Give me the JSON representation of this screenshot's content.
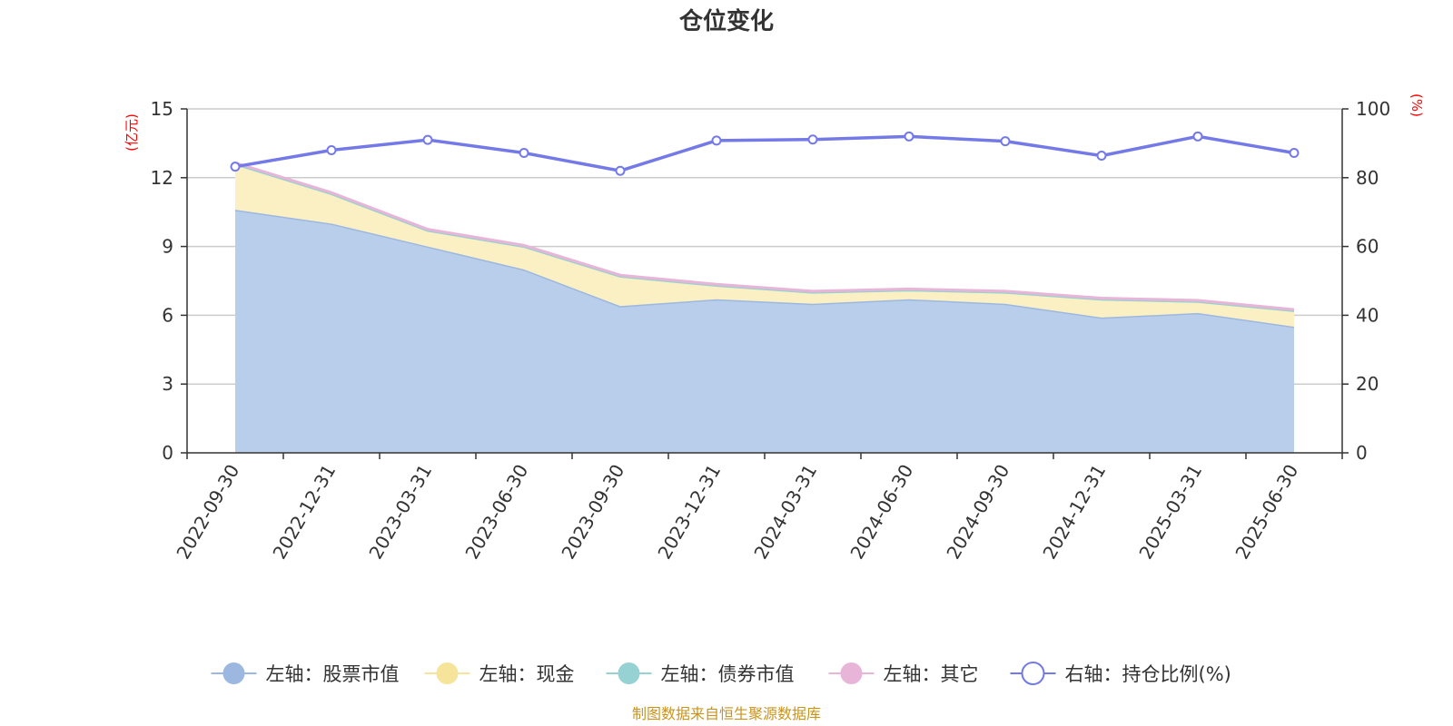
{
  "chart_data": {
    "type": "area",
    "title": "仓位变化",
    "x": [
      "2022-09-30",
      "2022-12-31",
      "2023-03-31",
      "2023-06-30",
      "2023-09-30",
      "2023-12-31",
      "2024-03-31",
      "2024-06-30",
      "2024-09-30",
      "2024-12-31",
      "2025-03-31",
      "2025-06-30"
    ],
    "left_axis": {
      "unit": "(亿元)",
      "ylim": [
        0,
        15
      ],
      "ticks": [
        "0",
        "3",
        "6",
        "9",
        "12",
        "15"
      ]
    },
    "right_axis": {
      "unit": "(%)",
      "ylim": [
        0,
        100
      ],
      "ticks": [
        "0",
        "20",
        "40",
        "60",
        "80",
        "100"
      ]
    },
    "stacked": true,
    "grid": true,
    "series": [
      {
        "name": "左轴：股票市值",
        "axis": "left",
        "color": "#9db8e0",
        "fill": "#b8ceeb",
        "values": [
          10.6,
          10.0,
          9.0,
          8.0,
          6.4,
          6.7,
          6.5,
          6.7,
          6.5,
          5.9,
          6.1,
          5.5
        ]
      },
      {
        "name": "左轴：现金",
        "axis": "left",
        "color": "#f5e49a",
        "fill": "#fbf0c4",
        "values": [
          2.0,
          1.3,
          0.7,
          1.0,
          1.3,
          0.6,
          0.5,
          0.4,
          0.5,
          0.8,
          0.5,
          0.7
        ]
      },
      {
        "name": "左轴：债券市值",
        "axis": "left",
        "color": "#96d1d4",
        "fill": "#b6e0e2",
        "values": [
          0,
          0,
          0,
          0,
          0,
          0,
          0,
          0,
          0,
          0,
          0,
          0
        ]
      },
      {
        "name": "左轴：其它",
        "axis": "left",
        "color": "#e8b4d8",
        "fill": "#f0cde6",
        "values": [
          0.05,
          0.05,
          0.05,
          0.05,
          0.05,
          0.05,
          0.05,
          0.05,
          0.05,
          0.05,
          0.05,
          0.05
        ]
      },
      {
        "name": "右轴：持仓比例(%)",
        "axis": "right",
        "type": "line",
        "color": "#7479e8",
        "values": [
          83.2,
          88.0,
          91.0,
          87.2,
          82.0,
          90.8,
          91.1,
          92.0,
          90.6,
          86.4,
          92.0,
          87.2
        ]
      }
    ],
    "legend_position": "bottom"
  },
  "footer": {
    "source": "制图数据来自恒生聚源数据库"
  }
}
